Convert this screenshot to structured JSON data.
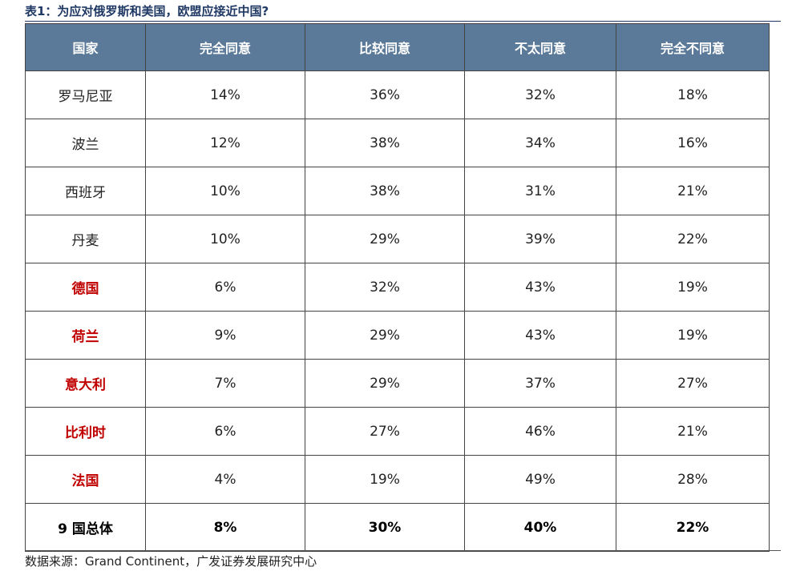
{
  "title": "表1：为应对俄罗斯和美国，欧盟应接近中国?",
  "table": {
    "headers": [
      "国家",
      "完全同意",
      "比较同意",
      "不太同意",
      "完全不同意"
    ],
    "rows": [
      {
        "country": "罗马尼亚",
        "highlight": false,
        "values": [
          "14%",
          "36%",
          "32%",
          "18%"
        ]
      },
      {
        "country": "波兰",
        "highlight": false,
        "values": [
          "12%",
          "38%",
          "34%",
          "16%"
        ]
      },
      {
        "country": "西班牙",
        "highlight": false,
        "values": [
          "10%",
          "38%",
          "31%",
          "21%"
        ]
      },
      {
        "country": "丹麦",
        "highlight": false,
        "values": [
          "10%",
          "29%",
          "39%",
          "22%"
        ]
      },
      {
        "country": "德国",
        "highlight": true,
        "values": [
          "6%",
          "32%",
          "43%",
          "19%"
        ]
      },
      {
        "country": "荷兰",
        "highlight": true,
        "values": [
          "9%",
          "29%",
          "43%",
          "19%"
        ]
      },
      {
        "country": "意大利",
        "highlight": true,
        "values": [
          "7%",
          "29%",
          "37%",
          "27%"
        ]
      },
      {
        "country": "比利时",
        "highlight": true,
        "values": [
          "6%",
          "27%",
          "46%",
          "21%"
        ]
      },
      {
        "country": "法国",
        "highlight": true,
        "values": [
          "4%",
          "19%",
          "49%",
          "28%"
        ]
      }
    ],
    "total": {
      "country": "9 国总体",
      "values": [
        "8%",
        "30%",
        "40%",
        "22%"
      ]
    }
  },
  "source": "数据来源：Grand Continent，广发证券发展研究中心",
  "colors": {
    "header_bg": "#5b7a99",
    "header_text": "#ffffff",
    "highlight_text": "#c00000",
    "title_text": "#1f3864"
  }
}
